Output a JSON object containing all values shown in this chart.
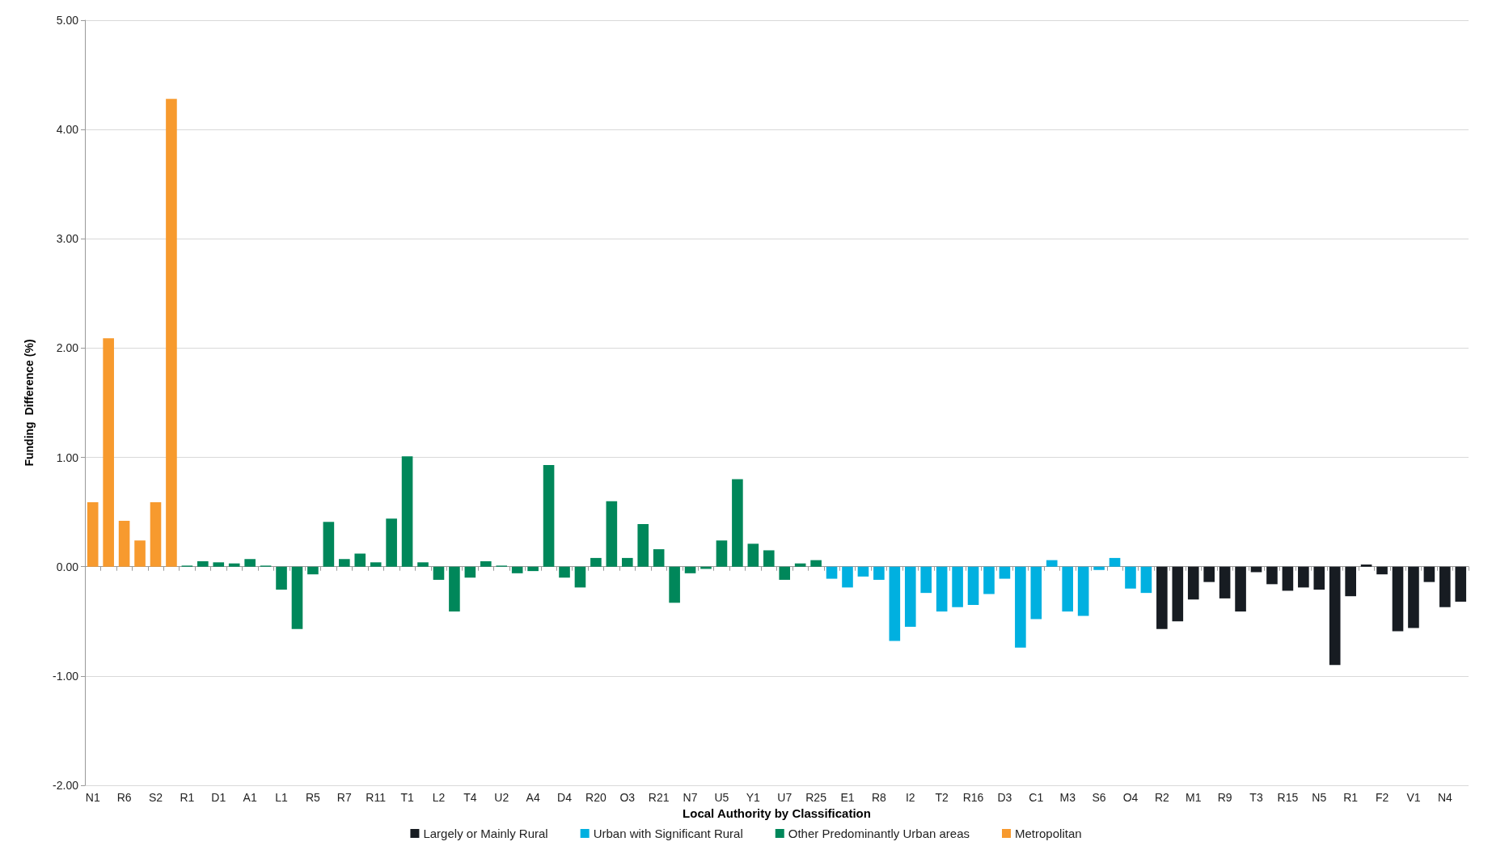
{
  "chart_data": {
    "type": "bar",
    "xlabel": "Local Authority by Classification",
    "ylabel": "Funding  Difference (%)",
    "categories": [
      "N1",
      null,
      "R6",
      null,
      "S2",
      null,
      "R1",
      null,
      "D1",
      null,
      "A1",
      null,
      "L1",
      null,
      "R5",
      null,
      "R7",
      null,
      "R11",
      null,
      "T1",
      null,
      "L2",
      null,
      "T4",
      null,
      "U2",
      null,
      "A4",
      null,
      "D4",
      null,
      "R20",
      null,
      "O3",
      null,
      "R21",
      null,
      "N7",
      null,
      "U5",
      null,
      "Y1",
      null,
      "U7",
      null,
      "R25",
      null,
      "E1",
      null,
      "R8",
      null,
      "I2",
      null,
      "T2",
      null,
      "R16",
      null,
      "D3",
      null,
      "C1",
      null,
      "M3",
      null,
      "S6",
      null,
      "O4",
      null,
      "R2",
      null,
      "M1",
      null,
      "R9",
      null,
      "T3",
      null,
      "R15",
      null,
      "N5",
      null,
      "R1",
      null,
      "F2",
      null,
      "V1",
      null,
      "N4",
      null
    ],
    "series": [
      {
        "name": "Largely or Mainly Rural",
        "color": "#171c22",
        "values": [
          null,
          null,
          null,
          null,
          null,
          null,
          null,
          null,
          null,
          null,
          null,
          null,
          null,
          null,
          null,
          null,
          null,
          null,
          null,
          null,
          null,
          null,
          null,
          null,
          null,
          null,
          null,
          null,
          null,
          null,
          null,
          null,
          null,
          null,
          null,
          null,
          null,
          null,
          null,
          null,
          null,
          null,
          null,
          null,
          null,
          null,
          null,
          null,
          null,
          null,
          null,
          null,
          null,
          null,
          null,
          null,
          null,
          null,
          null,
          null,
          null,
          null,
          null,
          null,
          null,
          null,
          null,
          null,
          -0.57,
          -0.5,
          -0.3,
          -0.14,
          -0.29,
          -0.41,
          -0.05,
          -0.16,
          -0.22,
          -0.19,
          -0.21,
          -0.9,
          -0.27,
          0.02,
          -0.07,
          -0.59,
          -0.56,
          -0.14,
          -0.37,
          -0.32
        ]
      },
      {
        "name": "Urban with Significant Rural",
        "color": "#00b0e0",
        "values": [
          null,
          null,
          null,
          null,
          null,
          null,
          null,
          null,
          null,
          null,
          null,
          null,
          null,
          null,
          null,
          null,
          null,
          null,
          null,
          null,
          null,
          null,
          null,
          null,
          null,
          null,
          null,
          null,
          null,
          null,
          null,
          null,
          null,
          null,
          null,
          null,
          null,
          null,
          null,
          null,
          null,
          null,
          null,
          null,
          null,
          null,
          null,
          -0.11,
          -0.19,
          -0.09,
          -0.12,
          -0.68,
          -0.55,
          -0.24,
          -0.41,
          -0.37,
          -0.35,
          -0.25,
          -0.11,
          -0.74,
          -0.48,
          0.06,
          -0.41,
          -0.45,
          -0.03,
          0.08,
          -0.2,
          -0.24,
          null,
          null,
          null,
          null,
          null,
          null,
          null,
          null,
          null,
          null,
          null,
          null,
          null,
          null,
          null,
          null,
          null,
          null,
          null,
          null
        ]
      },
      {
        "name": "Other Predominantly Urban areas",
        "color": "#00875a",
        "values": [
          null,
          null,
          null,
          null,
          null,
          null,
          0.01,
          0.05,
          0.04,
          0.03,
          0.07,
          0.01,
          -0.21,
          -0.57,
          -0.07,
          0.41,
          0.07,
          0.12,
          0.04,
          0.44,
          1.01,
          0.04,
          -0.12,
          -0.41,
          -0.1,
          0.05,
          0.01,
          -0.06,
          -0.04,
          0.93,
          -0.1,
          -0.19,
          0.08,
          0.6,
          0.08,
          0.39,
          0.16,
          -0.33,
          -0.06,
          -0.02,
          0.24,
          0.8,
          0.21,
          0.15,
          -0.12,
          0.03,
          0.06,
          null,
          null,
          null,
          null,
          null,
          null,
          null,
          null,
          null,
          null,
          null,
          null,
          null,
          null,
          null,
          null,
          null,
          null,
          null,
          null,
          null,
          null,
          null,
          null,
          null,
          null,
          null,
          null,
          null,
          null,
          null,
          null,
          null,
          null,
          null,
          null,
          null,
          null,
          null,
          null,
          null
        ]
      },
      {
        "name": "Metropolitan",
        "color": "#f79a2e",
        "values": [
          0.59,
          2.09,
          0.42,
          0.24,
          0.59,
          4.28,
          null,
          null,
          null,
          null,
          null,
          null,
          null,
          null,
          null,
          null,
          null,
          null,
          null,
          null,
          null,
          null,
          null,
          null,
          null,
          null,
          null,
          null,
          null,
          null,
          null,
          null,
          null,
          null,
          null,
          null,
          null,
          null,
          null,
          null,
          null,
          null,
          null,
          null,
          null,
          null,
          null,
          null,
          null,
          null,
          null,
          null,
          null,
          null,
          null,
          null,
          null,
          null,
          null,
          null,
          null,
          null,
          null,
          null,
          null,
          null,
          null,
          null,
          null,
          null,
          null,
          null,
          null,
          null,
          null,
          null,
          null,
          null,
          null,
          null,
          null,
          null,
          null,
          null,
          null,
          null,
          null,
          null
        ]
      }
    ],
    "ylim": [
      -2,
      5
    ],
    "yticks": [
      {
        "value": -2,
        "label": "-2.00"
      },
      {
        "value": -1,
        "label": "-1.00"
      },
      {
        "value": 0,
        "label": "0.00"
      },
      {
        "value": 1,
        "label": "1.00"
      },
      {
        "value": 2,
        "label": "2.00"
      },
      {
        "value": 3,
        "label": "3.00"
      },
      {
        "value": 4,
        "label": "4.00"
      },
      {
        "value": 5,
        "label": "5.00"
      }
    ],
    "grid": "y",
    "legend": "bottom"
  }
}
